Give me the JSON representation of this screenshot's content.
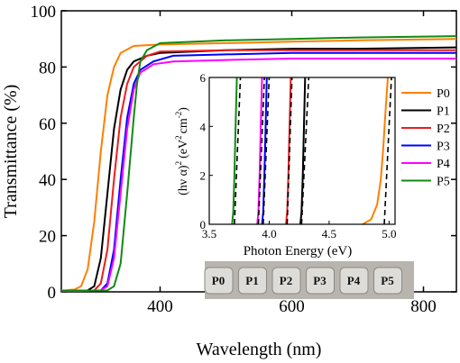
{
  "chart_data": [
    {
      "type": "line",
      "xlabel": "Wavelength (nm)",
      "ylabel": "Transmittance (%)",
      "xlim": [
        250,
        850
      ],
      "ylim": [
        0,
        100
      ],
      "xticks": [
        400,
        600,
        800
      ],
      "yticks": [
        0,
        20,
        40,
        60,
        80,
        100
      ],
      "series": [
        {
          "name": "P0",
          "color": "#ff7f00",
          "points": [
            [
              250,
              0.5
            ],
            [
              270,
              0.8
            ],
            [
              280,
              2
            ],
            [
              290,
              8
            ],
            [
              300,
              25
            ],
            [
              310,
              50
            ],
            [
              320,
              70
            ],
            [
              330,
              80
            ],
            [
              340,
              85
            ],
            [
              360,
              87.5
            ],
            [
              400,
              88
            ],
            [
              500,
              88.5
            ],
            [
              600,
              89
            ],
            [
              700,
              89.5
            ],
            [
              850,
              90
            ]
          ]
        },
        {
          "name": "P1",
          "color": "#000000",
          "points": [
            [
              250,
              0.3
            ],
            [
              290,
              0.5
            ],
            [
              300,
              2
            ],
            [
              310,
              12
            ],
            [
              320,
              35
            ],
            [
              330,
              58
            ],
            [
              340,
              72
            ],
            [
              350,
              79
            ],
            [
              360,
              82
            ],
            [
              380,
              84
            ],
            [
              400,
              85
            ],
            [
              500,
              86
            ],
            [
              600,
              86.5
            ],
            [
              700,
              86.5
            ],
            [
              850,
              87
            ]
          ]
        },
        {
          "name": "P2",
          "color": "#ee1c1c",
          "points": [
            [
              250,
              0.3
            ],
            [
              300,
              0.5
            ],
            [
              310,
              3
            ],
            [
              320,
              15
            ],
            [
              330,
              40
            ],
            [
              340,
              62
            ],
            [
              350,
              74
            ],
            [
              360,
              80
            ],
            [
              380,
              84
            ],
            [
              400,
              85.5
            ],
            [
              500,
              86
            ],
            [
              600,
              86
            ],
            [
              700,
              86
            ],
            [
              850,
              86
            ]
          ]
        },
        {
          "name": "P3",
          "color": "#0000ff",
          "points": [
            [
              250,
              0.3
            ],
            [
              310,
              0.5
            ],
            [
              320,
              3
            ],
            [
              330,
              15
            ],
            [
              340,
              40
            ],
            [
              350,
              62
            ],
            [
              360,
              74
            ],
            [
              370,
              79
            ],
            [
              390,
              82
            ],
            [
              420,
              84
            ],
            [
              500,
              84.5
            ],
            [
              600,
              85
            ],
            [
              700,
              85
            ],
            [
              850,
              85
            ]
          ]
        },
        {
          "name": "P4",
          "color": "#ff00ff",
          "points": [
            [
              250,
              0.3
            ],
            [
              310,
              0.5
            ],
            [
              320,
              2
            ],
            [
              330,
              12
            ],
            [
              340,
              35
            ],
            [
              350,
              58
            ],
            [
              360,
              72
            ],
            [
              370,
              78
            ],
            [
              390,
              81
            ],
            [
              420,
              82
            ],
            [
              500,
              82.5
            ],
            [
              600,
              83
            ],
            [
              700,
              83
            ],
            [
              850,
              83
            ]
          ]
        },
        {
          "name": "P5",
          "color": "#138a13",
          "points": [
            [
              250,
              0.3
            ],
            [
              320,
              0.5
            ],
            [
              330,
              2
            ],
            [
              340,
              10
            ],
            [
              350,
              35
            ],
            [
              360,
              62
            ],
            [
              365,
              74
            ],
            [
              370,
              82
            ],
            [
              380,
              86
            ],
            [
              400,
              88.5
            ],
            [
              500,
              89.5
            ],
            [
              600,
              90
            ],
            [
              700,
              90.5
            ],
            [
              850,
              91
            ]
          ]
        }
      ]
    },
    {
      "type": "line",
      "xlabel": "Photon Energy (eV)",
      "ylabel": "(hν α)",
      "ylabel_unit_prefix": "(eV",
      "ylabel_unit_suffix": "cm",
      "ylabel_sup_2": "2",
      "ylabel_sup_neg2": "-2",
      "ylabel_close": ")",
      "xlim": [
        3.5,
        5.05
      ],
      "ylim": [
        0,
        6
      ],
      "xticks": [
        3.5,
        4.0,
        4.5,
        5.0
      ],
      "xtick_labels": [
        "3.5",
        "4.0",
        "4.5",
        "5.0"
      ],
      "yticks": [
        0,
        2,
        4,
        6
      ],
      "series": [
        {
          "name": "P0",
          "color": "#ff7f00",
          "curve": [
            [
              4.78,
              0
            ],
            [
              4.85,
              0.2
            ],
            [
              4.9,
              0.8
            ],
            [
              4.93,
              1.8
            ],
            [
              4.95,
              3
            ],
            [
              4.97,
              4.6
            ],
            [
              4.99,
              6
            ]
          ],
          "fit": [
            [
              4.96,
              0
            ],
            [
              5.02,
              6
            ]
          ]
        },
        {
          "name": "P1",
          "color": "#000000",
          "curve": [
            [
              4.26,
              0
            ],
            [
              4.27,
              0.5
            ],
            [
              4.28,
              2
            ],
            [
              4.29,
              4
            ],
            [
              4.3,
              6
            ]
          ],
          "fit": [
            [
              4.27,
              0
            ],
            [
              4.33,
              6
            ]
          ]
        },
        {
          "name": "P2",
          "color": "#ee1c1c",
          "curve": [
            [
              4.14,
              0
            ],
            [
              4.15,
              0.5
            ],
            [
              4.16,
              2
            ],
            [
              4.17,
              4
            ],
            [
              4.18,
              6
            ]
          ],
          "fit": [
            [
              4.15,
              0
            ],
            [
              4.19,
              6
            ]
          ]
        },
        {
          "name": "P3",
          "color": "#0000ff",
          "curve": [
            [
              3.94,
              0
            ],
            [
              3.95,
              0.5
            ],
            [
              3.96,
              2
            ],
            [
              3.97,
              4
            ],
            [
              3.98,
              6
            ]
          ],
          "fit": [
            [
              3.95,
              0
            ],
            [
              4.0,
              6
            ]
          ]
        },
        {
          "name": "P4",
          "color": "#ff00ff",
          "curve": [
            [
              3.9,
              0
            ],
            [
              3.91,
              0.5
            ],
            [
              3.92,
              2
            ],
            [
              3.93,
              4
            ],
            [
              3.94,
              6
            ]
          ],
          "fit": [
            [
              3.91,
              0
            ],
            [
              3.96,
              6
            ]
          ]
        },
        {
          "name": "P5",
          "color": "#138a13",
          "curve": [
            [
              3.69,
              0
            ],
            [
              3.7,
              0.5
            ],
            [
              3.71,
              2
            ],
            [
              3.72,
              4
            ],
            [
              3.73,
              6
            ]
          ],
          "fit": [
            [
              3.71,
              0
            ],
            [
              3.76,
              6
            ]
          ]
        }
      ],
      "legend": [
        "P0",
        "P1",
        "P2",
        "P3",
        "P4",
        "P5"
      ],
      "legend_position": "right"
    }
  ],
  "sample_labels": [
    "P0",
    "P1",
    "P2",
    "P3",
    "P4",
    "P5"
  ]
}
